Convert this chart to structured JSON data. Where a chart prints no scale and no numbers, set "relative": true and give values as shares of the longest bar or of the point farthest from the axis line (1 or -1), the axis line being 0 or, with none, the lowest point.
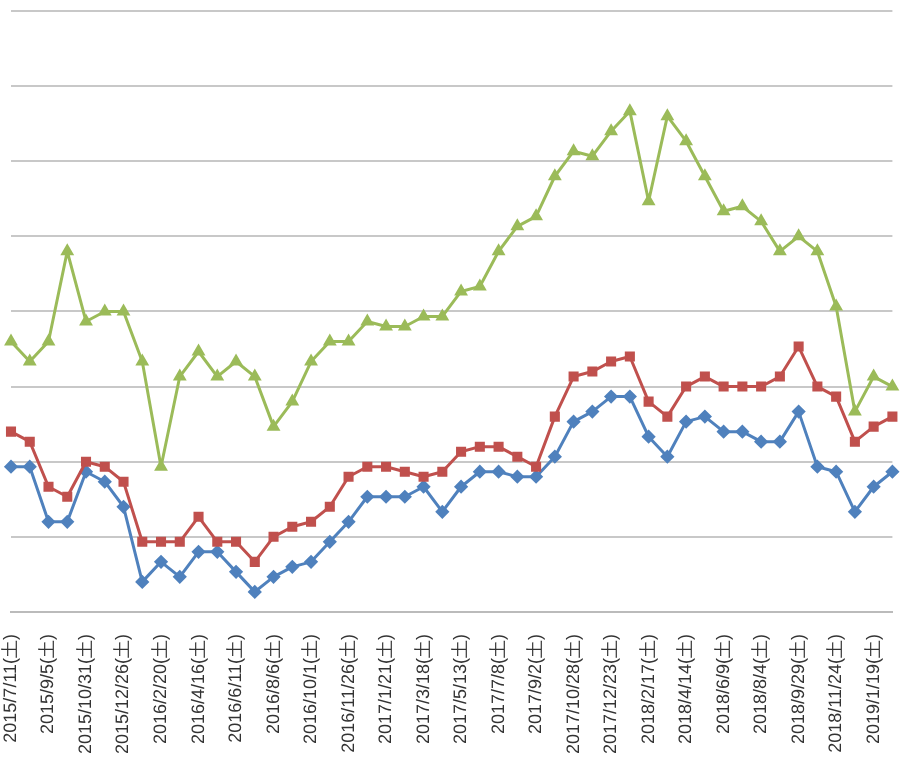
{
  "chart_data": {
    "type": "line",
    "relative": true,
    "grid": "y",
    "legend": false,
    "categories": [
      "2015/7/11(土)",
      null,
      "2015/9/5(土)",
      null,
      "2015/10/31(土)",
      null,
      "2015/12/26(土)",
      null,
      "2016/2/20(土)",
      null,
      "2016/4/16(土)",
      null,
      "2016/6/11(土)",
      null,
      "2016/8/6(土)",
      null,
      "2016/10/1(土)",
      null,
      "2016/11/26(土)",
      null,
      "2017/1/21(土)",
      null,
      "2017/3/18(土)",
      null,
      "2017/5/13(土)",
      null,
      "2017/7/8(土)",
      null,
      "2017/9/2(土)",
      null,
      "2017/10/28(土)",
      null,
      "2017/12/23(土)",
      null,
      "2018/2/17(土)",
      null,
      "2018/4/14(土)",
      null,
      "2018/6/9(土)",
      null,
      "2018/8/4(土)",
      null,
      "2018/9/29(土)",
      null,
      "2018/11/24(土)",
      null,
      "2019/1/19(土)",
      null
    ],
    "series": [
      {
        "color": "#4f81bd",
        "marker": "diamond",
        "values": [
          0.29,
          0.29,
          0.18,
          0.18,
          0.28,
          0.26,
          0.21,
          0.06,
          0.1,
          0.07,
          0.12,
          0.12,
          0.08,
          0.04,
          0.07,
          0.09,
          0.1,
          0.14,
          0.18,
          0.23,
          0.23,
          0.23,
          0.25,
          0.2,
          0.25,
          0.28,
          0.28,
          0.27,
          0.27,
          0.31,
          0.38,
          0.4,
          0.43,
          0.43,
          0.35,
          0.31,
          0.38,
          0.39,
          0.36,
          0.36,
          0.34,
          0.34,
          0.4,
          0.29,
          0.28,
          0.2,
          0.25,
          0.28
        ]
      },
      {
        "color": "#c0504d",
        "marker": "square",
        "values": [
          0.36,
          0.34,
          0.25,
          0.23,
          0.3,
          0.29,
          0.26,
          0.14,
          0.14,
          0.14,
          0.19,
          0.14,
          0.14,
          0.1,
          0.15,
          0.17,
          0.18,
          0.21,
          0.27,
          0.29,
          0.29,
          0.28,
          0.27,
          0.28,
          0.32,
          0.33,
          0.33,
          0.31,
          0.29,
          0.39,
          0.47,
          0.48,
          0.5,
          0.51,
          0.42,
          0.39,
          0.45,
          0.47,
          0.45,
          0.45,
          0.45,
          0.47,
          0.53,
          0.45,
          0.43,
          0.34,
          0.37,
          0.39
        ]
      },
      {
        "color": "#9bbb59",
        "marker": "triangle",
        "values": [
          0.54,
          0.5,
          0.54,
          0.72,
          0.58,
          0.6,
          0.6,
          0.5,
          0.29,
          0.47,
          0.52,
          0.47,
          0.5,
          0.47,
          0.37,
          0.42,
          0.5,
          0.54,
          0.54,
          0.58,
          0.57,
          0.57,
          0.59,
          0.59,
          0.64,
          0.65,
          0.72,
          0.77,
          0.79,
          0.87,
          0.92,
          0.91,
          0.96,
          1,
          0.82,
          0.99,
          0.94,
          0.87,
          0.8,
          0.81,
          0.78,
          0.72,
          0.75,
          0.72,
          0.61,
          0.4,
          0.47,
          0.45
        ]
      }
    ]
  }
}
